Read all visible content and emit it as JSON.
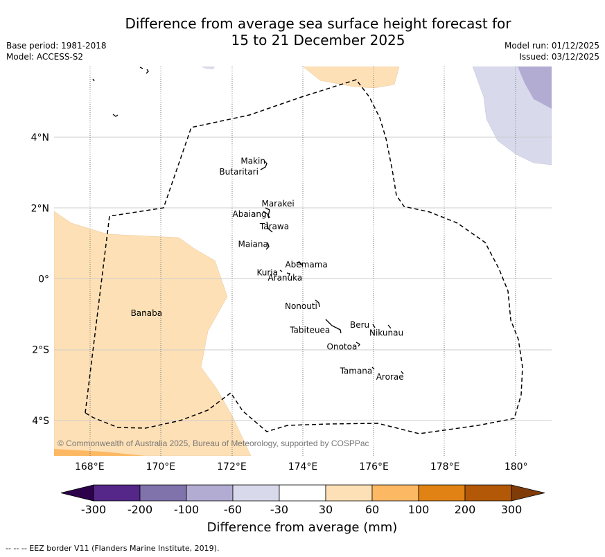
{
  "title": {
    "line1": "Difference from average sea surface height forecast for",
    "line2": "15 to 21 December 2025"
  },
  "meta": {
    "base_period": "Base period: 1981-2018",
    "model": "Model: ACCESS-S2",
    "model_run": "Model run: 01/12/2025",
    "issued": "Issued: 03/12/2025"
  },
  "map": {
    "lon_range": [
      167,
      181
    ],
    "lat_range": [
      -5,
      6
    ],
    "lon_ticks": [
      "168°E",
      "170°E",
      "172°E",
      "174°E",
      "176°E",
      "178°E",
      "180°"
    ],
    "lat_ticks": [
      "4°N",
      "2°N",
      "0°",
      "2°S",
      "4°S"
    ],
    "copyright": "© Commonwealth of Australia 2025, Bureau of Meteorology, supported by COSPPac",
    "labels": [
      {
        "name": "Makin",
        "lon": 172.6,
        "lat": 3.25
      },
      {
        "name": "Butaritari",
        "lon": 172.2,
        "lat": 2.95
      },
      {
        "name": "Marakei",
        "lon": 173.3,
        "lat": 2.05
      },
      {
        "name": "Abaiang",
        "lon": 172.5,
        "lat": 1.75
      },
      {
        "name": "Tarawa",
        "lon": 173.2,
        "lat": 1.4
      },
      {
        "name": "Maiana",
        "lon": 172.6,
        "lat": 0.9
      },
      {
        "name": "Abemama",
        "lon": 174.1,
        "lat": 0.32
      },
      {
        "name": "Kuria",
        "lon": 173.0,
        "lat": 0.1
      },
      {
        "name": "Aranuka",
        "lon": 173.5,
        "lat": -0.05
      },
      {
        "name": "Nonouti",
        "lon": 173.95,
        "lat": -0.85
      },
      {
        "name": "Banaba",
        "lon": 169.6,
        "lat": -1.05
      },
      {
        "name": "Beru",
        "lon": 175.6,
        "lat": -1.38
      },
      {
        "name": "Nikunau",
        "lon": 176.35,
        "lat": -1.6
      },
      {
        "name": "Tabiteuea",
        "lon": 174.2,
        "lat": -1.53
      },
      {
        "name": "Onotoa",
        "lon": 175.1,
        "lat": -2.0
      },
      {
        "name": "Tamana",
        "lon": 175.5,
        "lat": -2.68
      },
      {
        "name": "Arorae",
        "lon": 176.45,
        "lat": -2.85
      }
    ]
  },
  "colorbar": {
    "ticks": [
      "-300",
      "-200",
      "-100",
      "-60",
      "-30",
      "30",
      "60",
      "100",
      "200",
      "300"
    ],
    "colors": [
      "#542788",
      "#8073ac",
      "#b2abd2",
      "#d8daeb",
      "#ffffff",
      "#fee0b6",
      "#fdb863",
      "#e08214",
      "#b35806"
    ],
    "under_color": "#2d004b",
    "over_color": "#7f3b08",
    "label": "Difference from average (mm)"
  },
  "footer": "--  --  -- EEZ border V11 (Flanders Marine Institute, 2019)."
}
